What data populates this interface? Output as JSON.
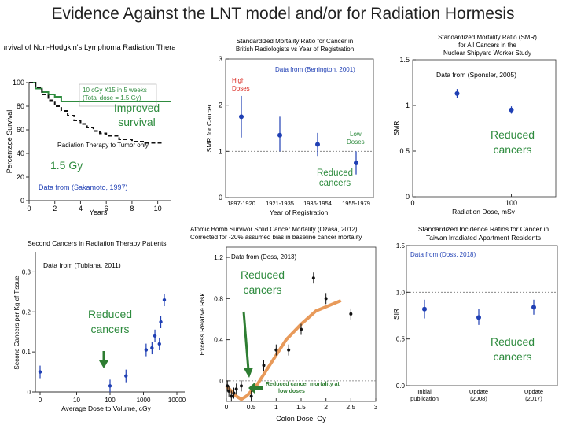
{
  "slide_title": "Evidence Against the LNT model and/or for Radiation Hormesis",
  "colors": {
    "green": "#2e8b3e",
    "blue": "#1f3fb4",
    "red": "#d9241c",
    "orange": "#e89a5a",
    "darkgreen": "#2e7d32"
  },
  "chart_data": [
    {
      "type": "line",
      "title": "Survival of Non-Hodgkin's Lymphoma Radiation Therapy Patients",
      "xlabel": "Years",
      "ylabel": "Percentage Survival",
      "xlim": [
        0,
        11
      ],
      "ylim": [
        0,
        100
      ],
      "xticks": [
        "0",
        "2",
        "4",
        "6",
        "8",
        "10"
      ],
      "yticks": [
        "0",
        "20",
        "40",
        "60",
        "80",
        "100"
      ],
      "series": [
        {
          "name": "10 cGy X15 in 5 weeks (Total dose = 1.5 Gy)",
          "x": [
            0,
            0.5,
            1,
            1.5,
            2,
            2.5,
            11
          ],
          "y": [
            100,
            95,
            92,
            90,
            88,
            84,
            84
          ]
        },
        {
          "name": "Radiation Therapy to Tumor only",
          "x": [
            0,
            0.5,
            1,
            1.5,
            2,
            2.5,
            3,
            3.5,
            4,
            4.5,
            5,
            5.5,
            6,
            7,
            8,
            9,
            10,
            10.5
          ],
          "y": [
            100,
            96,
            90,
            85,
            80,
            76,
            72,
            68,
            65,
            62,
            59,
            57,
            55,
            52,
            50,
            49,
            49,
            49
          ]
        }
      ],
      "legend_green_line1": "10 cGy X15 in 5 weeks",
      "legend_green_line2": "(Total dose = 1.5 Gy)",
      "legend_black": "Radiation Therapy to Tumor only",
      "source": "Data from (Sakamoto, 1997)",
      "overlay_improved_1": "Improved",
      "overlay_improved_2": "survival",
      "overlay_dose": "1.5 Gy"
    },
    {
      "type": "scatter",
      "title_line1": "Standardized Mortality Ratio for Cancer in",
      "title_line2": "British Radiologists vs Year of Registration",
      "ylabel": "SMR for Cancer",
      "xlabel": "Year of Registration",
      "ylim": [
        0,
        3
      ],
      "yticks": [
        "0",
        "1",
        "2",
        "3"
      ],
      "categories": [
        "1897-1920",
        "1921-1935",
        "1936-1954",
        "1955-1979"
      ],
      "values": [
        1.75,
        1.35,
        1.15,
        0.75
      ],
      "err_low": [
        1.3,
        1.0,
        0.9,
        0.5
      ],
      "err_high": [
        2.2,
        1.75,
        1.4,
        1.0
      ],
      "source": "Data from (Berrington, 2001)",
      "high_doses_1": "High",
      "high_doses_2": "Doses",
      "low_doses_1": "Low",
      "low_doses_2": "Doses",
      "overlay_reduced_1": "Reduced",
      "overlay_reduced_2": "cancers"
    },
    {
      "type": "scatter",
      "title_line1": "Standardized Mortality Ratio (SMR)",
      "title_line2": "for All Cancers in the",
      "title_line3": "Nuclear Shipyard Worker Study",
      "ylabel": "SMR",
      "xlabel": "Radiation Dose, mSv",
      "ylim": [
        0,
        1.5
      ],
      "yticks": [
        "0",
        "0.5",
        "1",
        "1.5"
      ],
      "xticks": [
        "0",
        "100"
      ],
      "x": [
        45,
        100
      ],
      "values": [
        1.13,
        0.95
      ],
      "err_low": [
        1.08,
        0.91
      ],
      "err_high": [
        1.18,
        0.99
      ],
      "source": "Data from (Sponsler, 2005)",
      "overlay_reduced_1": "Reduced",
      "overlay_reduced_2": "cancers"
    },
    {
      "type": "scatter",
      "title": "Second Cancers in Radiation Therapy Patients",
      "ylabel": "Second Cancers per Kg of Tissue",
      "xlabel": "Average Dose to Volume, cGy",
      "xscale": "log",
      "xlim": [
        0,
        10000
      ],
      "ylim": [
        0,
        0.35
      ],
      "yticks": [
        "0",
        "0.1",
        "0.2",
        "0.3"
      ],
      "xticks": [
        "0",
        "10",
        "100",
        "1000",
        "10000"
      ],
      "x": [
        0,
        100,
        300,
        1200,
        1800,
        2200,
        3000,
        3300,
        4200
      ],
      "values": [
        0.05,
        0.015,
        0.04,
        0.105,
        0.11,
        0.14,
        0.12,
        0.175,
        0.23
      ],
      "source": "Data from (Tubiana, 2011)",
      "overlay_reduced_1": "Reduced",
      "overlay_reduced_2": "cancers"
    },
    {
      "type": "line",
      "title_line1": "Atomic Bomb Survivor Solid Cancer Mortality (Ozasa, 2012)",
      "title_line2": "Corrected for -20% assumed bias in baseline cancer mortality",
      "ylabel": "Excess Relative Risk",
      "xlabel": "Colon Dose, Gy",
      "xlim": [
        0,
        3
      ],
      "ylim": [
        -0.2,
        1.3
      ],
      "xticks": [
        "0",
        "0.5",
        "1",
        "1.5",
        "2",
        "2.5",
        "3"
      ],
      "yticks": [
        "0",
        "0.4",
        "0.8",
        "1.2"
      ],
      "curve_x": [
        0,
        0.1,
        0.2,
        0.3,
        0.4,
        0.6,
        0.8,
        1.0,
        1.2,
        1.5,
        1.8,
        2.0,
        2.3
      ],
      "curve_y": [
        -0.05,
        -0.1,
        -0.15,
        -0.18,
        -0.15,
        -0.05,
        0.1,
        0.25,
        0.4,
        0.55,
        0.68,
        0.72,
        0.78
      ],
      "x": [
        0.02,
        0.05,
        0.1,
        0.15,
        0.2,
        0.3,
        0.5,
        0.75,
        1.0,
        1.25,
        1.5,
        1.75,
        2.0,
        2.5
      ],
      "values": [
        -0.05,
        -0.1,
        -0.15,
        -0.12,
        -0.08,
        -0.05,
        -0.15,
        0.15,
        0.3,
        0.3,
        0.5,
        1.0,
        0.8,
        0.65
      ],
      "source": "Data from (Doss, 2013)",
      "annotation_1": "Reduced cancer mortality at",
      "annotation_2": "low doses",
      "overlay_reduced_1": "Reduced",
      "overlay_reduced_2": "cancers"
    },
    {
      "type": "scatter",
      "title_line1": "Standardized Incidence Ratios for Cancer in",
      "title_line2": "Taiwan Irradiated Apartment Residents",
      "ylabel": "SIR",
      "ylim": [
        0,
        1.5
      ],
      "yticks": [
        "0.0",
        "0.5",
        "1.0",
        "1.5"
      ],
      "categories": [
        "Initial publication",
        "Update (2008)",
        "Update (2017)"
      ],
      "cat_line1": [
        "Initial",
        "Update",
        "Update"
      ],
      "cat_line2": [
        "publication",
        "(2008)",
        "(2017)"
      ],
      "values": [
        0.82,
        0.73,
        0.84
      ],
      "err_low": [
        0.72,
        0.65,
        0.76
      ],
      "err_high": [
        0.92,
        0.82,
        0.92
      ],
      "source": "Data from (Doss, 2018)",
      "overlay_reduced_1": "Reduced",
      "overlay_reduced_2": "cancers"
    }
  ]
}
